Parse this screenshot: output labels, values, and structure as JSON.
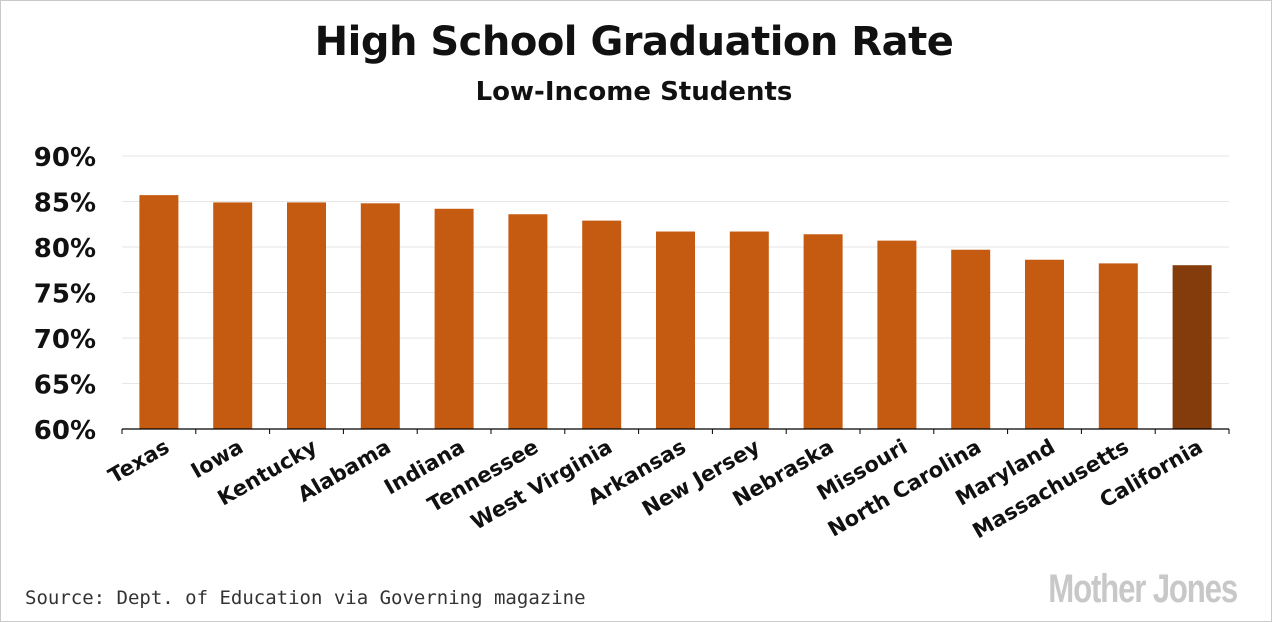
{
  "chart_data": {
    "type": "bar",
    "title": "High School Graduation Rate",
    "subtitle": "Low-Income Students",
    "categories": [
      "Texas",
      "Iowa",
      "Kentucky",
      "Alabama",
      "Indiana",
      "Tennessee",
      "West Virginia",
      "Arkansas",
      "New Jersey",
      "Nebraska",
      "Missouri",
      "North Carolina",
      "Maryland",
      "Massachusetts",
      "California"
    ],
    "values": [
      85.7,
      84.9,
      84.9,
      84.8,
      84.2,
      83.6,
      82.9,
      81.7,
      81.7,
      81.4,
      80.7,
      79.7,
      78.6,
      78.2,
      78.0
    ],
    "ylim": [
      60,
      90
    ],
    "yticks": [
      "60%",
      "65%",
      "70%",
      "75%",
      "80%",
      "85%",
      "90%"
    ],
    "xlabel": "",
    "ylabel": "",
    "grid": true,
    "colors": {
      "bar": "#c55a11",
      "highlight": "#843c0c",
      "grid": "#e6e6e6",
      "axis": "#000000"
    },
    "highlight_category": "California"
  },
  "footer": {
    "source": "Source: Dept. of Education via Governing magazine",
    "logo": "Mother Jones"
  }
}
